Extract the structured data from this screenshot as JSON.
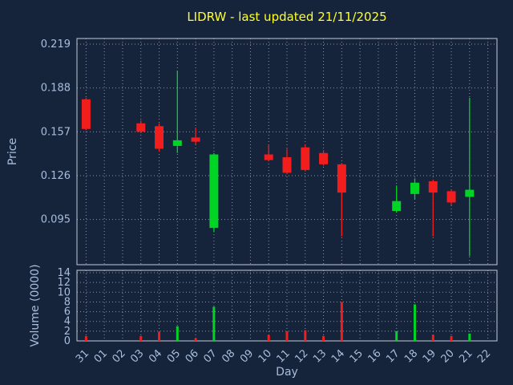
{
  "title": "LIDRW - last updated 21/11/2025",
  "axes": {
    "price_label": "Price",
    "volume_label": "Volume (0000)",
    "day_label": "Day",
    "price_ticks": [
      {
        "label": "0.095",
        "value": 0.095
      },
      {
        "label": "0.126",
        "value": 0.126
      },
      {
        "label": "0.157",
        "value": 0.157
      },
      {
        "label": "0.188",
        "value": 0.188
      },
      {
        "label": "0.219",
        "value": 0.219
      }
    ],
    "volume_ticks": [
      {
        "label": "0",
        "value": 0
      },
      {
        "label": "2",
        "value": 2
      },
      {
        "label": "4",
        "value": 4
      },
      {
        "label": "6",
        "value": 6
      },
      {
        "label": "8",
        "value": 8
      },
      {
        "label": "10",
        "value": 10
      },
      {
        "label": "12",
        "value": 12
      },
      {
        "label": "14",
        "value": 14
      }
    ],
    "day_ticks": [
      "31",
      "01",
      "02",
      "03",
      "04",
      "05",
      "06",
      "07",
      "08",
      "09",
      "10",
      "11",
      "12",
      "13",
      "14",
      "15",
      "16",
      "17",
      "18",
      "19",
      "20",
      "21",
      "22"
    ]
  },
  "colors": {
    "background": "#15233b",
    "title": "#ffff2e",
    "axis_text": "#a8bedd",
    "grid": "#8b94a8",
    "frame": "#c3cbd8",
    "up": "#00d425",
    "down": "#f21d1d"
  },
  "chart_data": [
    {
      "type": "candlestick",
      "title": "LIDRW - last updated 21/11/2025",
      "xlabel": "Day",
      "ylabel": "Price",
      "ylim": [
        0.063,
        0.223
      ],
      "x_categories": [
        "31",
        "01",
        "02",
        "03",
        "04",
        "05",
        "06",
        "07",
        "08",
        "09",
        "10",
        "11",
        "12",
        "13",
        "14",
        "15",
        "16",
        "17",
        "18",
        "19",
        "20",
        "21",
        "22"
      ],
      "grid": true,
      "series": [
        {
          "name": "OHLC",
          "points": [
            {
              "day": "31",
              "open": 0.18,
              "high": 0.181,
              "low": 0.158,
              "close": 0.159
            },
            {
              "day": "03",
              "open": 0.163,
              "high": 0.165,
              "low": 0.156,
              "close": 0.157
            },
            {
              "day": "04",
              "open": 0.161,
              "high": 0.163,
              "low": 0.143,
              "close": 0.145
            },
            {
              "day": "05",
              "open": 0.147,
              "high": 0.2,
              "low": 0.142,
              "close": 0.151
            },
            {
              "day": "06",
              "open": 0.153,
              "high": 0.16,
              "low": 0.148,
              "close": 0.15
            },
            {
              "day": "07",
              "open": 0.089,
              "high": 0.142,
              "low": 0.086,
              "close": 0.141
            },
            {
              "day": "10",
              "open": 0.141,
              "high": 0.148,
              "low": 0.136,
              "close": 0.137
            },
            {
              "day": "11",
              "open": 0.139,
              "high": 0.145,
              "low": 0.127,
              "close": 0.128
            },
            {
              "day": "12",
              "open": 0.146,
              "high": 0.148,
              "low": 0.129,
              "close": 0.13
            },
            {
              "day": "13",
              "open": 0.142,
              "high": 0.144,
              "low": 0.133,
              "close": 0.134
            },
            {
              "day": "14",
              "open": 0.134,
              "high": 0.135,
              "low": 0.083,
              "close": 0.114
            },
            {
              "day": "17",
              "open": 0.101,
              "high": 0.119,
              "low": 0.1,
              "close": 0.108
            },
            {
              "day": "18",
              "open": 0.113,
              "high": 0.124,
              "low": 0.109,
              "close": 0.121
            },
            {
              "day": "19",
              "open": 0.122,
              "high": 0.123,
              "low": 0.083,
              "close": 0.114
            },
            {
              "day": "20",
              "open": 0.115,
              "high": 0.116,
              "low": 0.105,
              "close": 0.107
            },
            {
              "day": "21",
              "open": 0.111,
              "high": 0.181,
              "low": 0.069,
              "close": 0.116
            }
          ]
        }
      ]
    },
    {
      "type": "bar",
      "ylabel": "Volume (0000)",
      "ylim": [
        0,
        14.5
      ],
      "grid": true,
      "series": [
        {
          "name": "Volume",
          "points": [
            {
              "day": "31",
              "value": 1.0
            },
            {
              "day": "03",
              "value": 1.0
            },
            {
              "day": "04",
              "value": 1.8
            },
            {
              "day": "05",
              "value": 3.0
            },
            {
              "day": "06",
              "value": 0.5
            },
            {
              "day": "07",
              "value": 7.0
            },
            {
              "day": "10",
              "value": 1.2
            },
            {
              "day": "11",
              "value": 2.0
            },
            {
              "day": "12",
              "value": 2.2
            },
            {
              "day": "13",
              "value": 1.0
            },
            {
              "day": "14",
              "value": 8.0
            },
            {
              "day": "17",
              "value": 2.0
            },
            {
              "day": "18",
              "value": 7.5
            },
            {
              "day": "19",
              "value": 1.2
            },
            {
              "day": "20",
              "value": 1.0
            },
            {
              "day": "21",
              "value": 1.5
            }
          ]
        }
      ]
    }
  ]
}
